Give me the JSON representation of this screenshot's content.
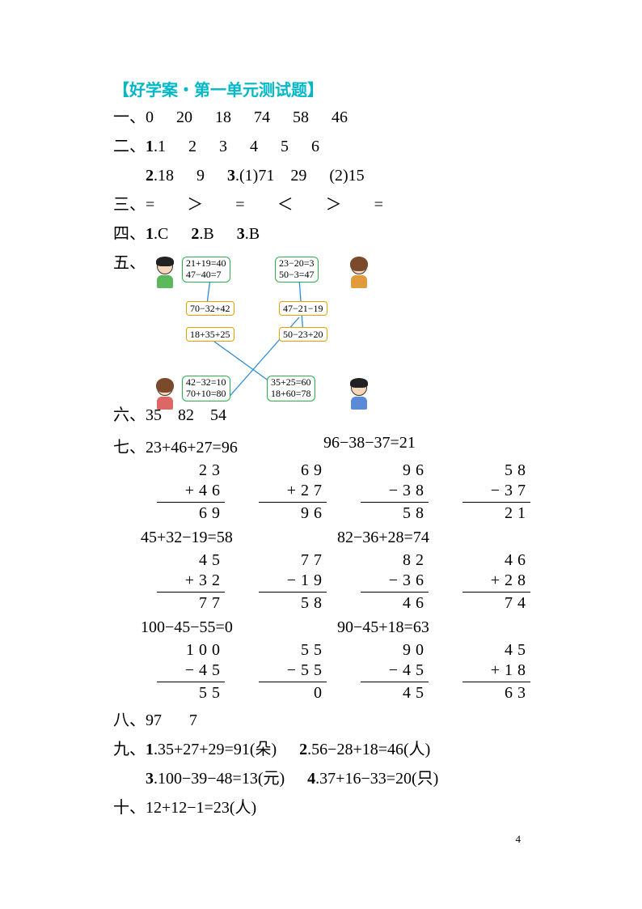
{
  "title": "【好学案・第一单元测试题】",
  "q1": {
    "label": "一、",
    "values": [
      "0",
      "20",
      "18",
      "74",
      "58",
      "46"
    ]
  },
  "q2": {
    "label": "二、",
    "r1": {
      "num": "1",
      "values": [
        "1",
        "2",
        "3",
        "4",
        "5",
        "6"
      ]
    },
    "r2a": {
      "num": "2",
      "values": [
        "18",
        "9"
      ]
    },
    "r2b": {
      "num": "3",
      "p1": "(1)71　29",
      "p2": "(2)15"
    }
  },
  "q3": {
    "label": "三、",
    "values": [
      "=",
      "＞",
      "=",
      "＜",
      "＞",
      "="
    ]
  },
  "q4": {
    "label": "四、",
    "items": [
      {
        "num": "1",
        "ans": "C"
      },
      {
        "num": "2",
        "ans": "B"
      },
      {
        "num": "3",
        "ans": "B"
      }
    ]
  },
  "q5": {
    "label": "五、",
    "bubbles": {
      "tl": "21+19=40\n47−40=7",
      "tr": "23−20=3\n50−3=47",
      "bl": "42−32=10\n70+10=80",
      "br": "35+25=60\n18+60=78"
    },
    "boxes": {
      "a": "70−32+42",
      "b": "47−21−19",
      "c": "18+35+25",
      "d": "50−23+20"
    },
    "line_color": "#2a8bd6",
    "bubble_border": "#2bb14c",
    "box_border": "#e6a100"
  },
  "q6": {
    "label": "六、",
    "text": "35　82　54"
  },
  "q7": {
    "label": "七、",
    "sets": [
      {
        "eqs": [
          "23+46+27=96",
          "96−38−37=21"
        ],
        "cols": [
          {
            "a": "23",
            "op": "+",
            "b": "46",
            "r": "69"
          },
          {
            "a": "69",
            "op": "+",
            "b": "27",
            "r": "96"
          },
          {
            "a": "96",
            "op": "−",
            "b": "38",
            "r": "58"
          },
          {
            "a": "58",
            "op": "−",
            "b": "37",
            "r": "21"
          }
        ]
      },
      {
        "eqs": [
          "45+32−19=58",
          "82−36+28=74"
        ],
        "cols": [
          {
            "a": "45",
            "op": "+",
            "b": "32",
            "r": "77"
          },
          {
            "a": "77",
            "op": "−",
            "b": "19",
            "r": "58"
          },
          {
            "a": "82",
            "op": "−",
            "b": "36",
            "r": "46"
          },
          {
            "a": "46",
            "op": "+",
            "b": "28",
            "r": "74"
          }
        ]
      },
      {
        "eqs": [
          "100−45−55=0",
          "90−45+18=63"
        ],
        "cols": [
          {
            "a": "100",
            "op": "−",
            "b": "45",
            "r": "55"
          },
          {
            "a": "55",
            "op": "−",
            "b": "55",
            "r": "0"
          },
          {
            "a": "90",
            "op": "−",
            "b": "45",
            "r": "45"
          },
          {
            "a": "45",
            "op": "+",
            "b": "18",
            "r": "63"
          }
        ]
      }
    ]
  },
  "q8": {
    "label": "八、",
    "values": [
      "97",
      "7"
    ]
  },
  "q9": {
    "label": "九、",
    "items": [
      {
        "num": "1",
        "eq": "35+27+29=91(朵)"
      },
      {
        "num": "2",
        "eq": "56−28+18=46(人)"
      },
      {
        "num": "3",
        "eq": "100−39−48=13(元)"
      },
      {
        "num": "4",
        "eq": "37+16−33=20(只)"
      }
    ]
  },
  "q10": {
    "label": "十、",
    "eq": "12+12−1=23(人)"
  },
  "page_number": "4"
}
